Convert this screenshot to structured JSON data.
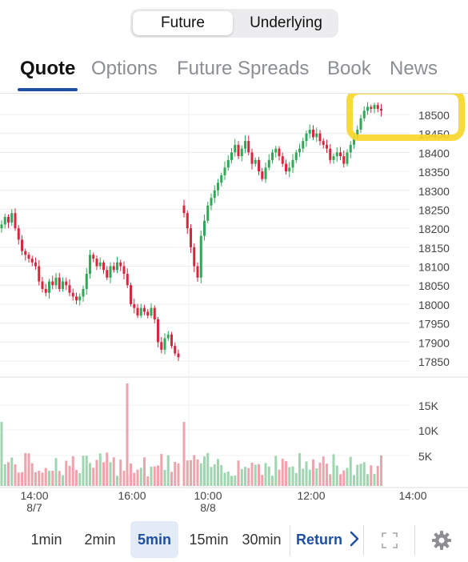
{
  "segment": {
    "options": [
      "Future",
      "Underlying"
    ],
    "selected": "Future"
  },
  "tabs": [
    "Quote",
    "Options",
    "Future Spreads",
    "Book",
    "News"
  ],
  "active_tab": "Quote",
  "timeframes": [
    "1min",
    "2min",
    "5min",
    "15min",
    "30min"
  ],
  "active_timeframe": "5min",
  "return_label": "Return",
  "icons": {
    "fullscreen": "fullscreen-icon",
    "settings": "gear-icon",
    "return": "chevron-right-icon"
  },
  "colors": {
    "up": "#2fa857",
    "down": "#d7263d",
    "up_volume": "#9fd6b0",
    "down_volume": "#eea3ad",
    "accent": "#1e4fa0",
    "highlight": "#f7d628"
  },
  "chart_data": {
    "type": "candlestick",
    "price_axis": {
      "ticks": [
        17850,
        17900,
        17950,
        18000,
        18050,
        18100,
        18150,
        18200,
        18250,
        18300,
        18350,
        18400,
        18450,
        18500
      ]
    },
    "volume_axis": {
      "ticks": [
        "5K",
        "10K",
        "15K"
      ]
    },
    "x_ticks": [
      {
        "label": "14:00",
        "sublabel": "8/7"
      },
      {
        "label": "16:00",
        "sublabel": ""
      },
      {
        "label": "10:00",
        "sublabel": "8/8"
      },
      {
        "label": "12:00",
        "sublabel": ""
      },
      {
        "label": "14:00",
        "sublabel": ""
      }
    ],
    "session_1": {
      "closes": [
        18210,
        18230,
        18215,
        18240,
        18200,
        18170,
        18140,
        18130,
        18120,
        18110,
        18100,
        18060,
        18040,
        18030,
        18060,
        18050,
        18070,
        18040,
        18060,
        18050,
        18030,
        18020,
        18010,
        18020,
        18040,
        18080,
        18130,
        18120,
        18100,
        18110,
        18090,
        18070,
        18100,
        18090,
        18110,
        18100,
        18080,
        18050,
        18000,
        17990,
        17970,
        17990,
        17980,
        17970,
        17990,
        17960,
        17900,
        17880,
        17910,
        17920,
        17890,
        17870,
        17860
      ]
    },
    "session_2": {
      "closes": [
        18240,
        18200,
        18150,
        18100,
        18070,
        18180,
        18220,
        18260,
        18280,
        18300,
        18320,
        18340,
        18360,
        18380,
        18400,
        18420,
        18390,
        18410,
        18430,
        18400,
        18370,
        18380,
        18350,
        18330,
        18360,
        18380,
        18400,
        18410,
        18390,
        18370,
        18350,
        18360,
        18380,
        18400,
        18410,
        18430,
        18450,
        18460,
        18440,
        18450,
        18430,
        18420,
        18410,
        18380,
        18390,
        18400,
        18390,
        18370,
        18400,
        18420,
        18440,
        18460,
        18490,
        18510,
        18520,
        18515,
        18525,
        18515,
        18510
      ]
    }
  }
}
